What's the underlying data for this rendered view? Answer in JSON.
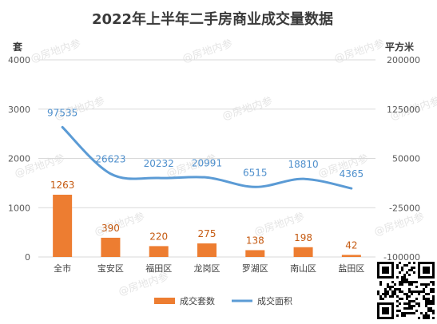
{
  "chart_data": {
    "type": "bar",
    "title": "2022年上半年二手房商业成交量数据",
    "categories": [
      "全市",
      "宝安区",
      "福田区",
      "龙岗区",
      "罗湖区",
      "南山区",
      "盐田区"
    ],
    "series": [
      {
        "name": "成交套数",
        "type": "bar",
        "axis": "left",
        "color": "#ed7d31",
        "values": [
          1263,
          390,
          220,
          275,
          138,
          198,
          42
        ]
      },
      {
        "name": "成交面积",
        "type": "line",
        "axis": "right",
        "color": "#5b9bd5",
        "values": [
          97535,
          26623,
          20232,
          20991,
          6515,
          18810,
          4365
        ]
      }
    ],
    "y_left": {
      "unit": "套",
      "range": [
        0,
        4000
      ],
      "ticks": [
        "0",
        "1000",
        "2000",
        "3000",
        "4000"
      ]
    },
    "y_right": {
      "unit": "平方米",
      "range": [
        -100000,
        200000
      ],
      "ticks": [
        "-100000",
        "-25000",
        "50000",
        "125000",
        "200000"
      ]
    },
    "grid": true,
    "legend_position": "bottom"
  },
  "watermark": "@房地内参",
  "qr_icon": "qr-code-icon"
}
